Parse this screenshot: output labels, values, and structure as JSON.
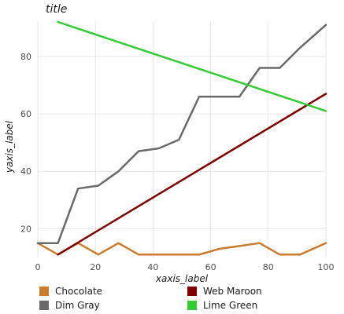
{
  "chart_data": {
    "type": "line",
    "title": "title",
    "xlabel": "xaxis_label",
    "ylabel": "yaxis_label",
    "xlim": [
      0,
      100
    ],
    "ylim": [
      10,
      92
    ],
    "x_ticks": [
      0,
      20,
      40,
      60,
      80,
      100
    ],
    "y_ticks": [
      20,
      40,
      60,
      80
    ],
    "grid": true,
    "legend_position": "bottom",
    "series": [
      {
        "name": "Chocolate",
        "color": "#cc7a2e",
        "x": [
          0,
          7,
          14,
          21,
          28,
          35,
          42,
          49,
          56,
          63,
          70,
          77,
          84,
          91,
          100
        ],
        "y": [
          15,
          11,
          15,
          11,
          15,
          11,
          11,
          11,
          11,
          13,
          14,
          15,
          11,
          11,
          15
        ]
      },
      {
        "name": "Web Maroon",
        "color": "#800000",
        "x": [
          7,
          100
        ],
        "y": [
          11,
          67
        ]
      },
      {
        "name": "Dim Gray",
        "color": "#696969",
        "x": [
          0,
          7,
          14,
          21,
          28,
          35,
          42,
          49,
          56,
          63,
          70,
          77,
          84,
          91,
          100
        ],
        "y": [
          15,
          15,
          34,
          35,
          40,
          47,
          48,
          51,
          66,
          66,
          66,
          76,
          76,
          83,
          91
        ]
      },
      {
        "name": "Lime Green",
        "color": "#32cd32",
        "x": [
          7,
          100
        ],
        "y": [
          92,
          61
        ]
      }
    ]
  }
}
